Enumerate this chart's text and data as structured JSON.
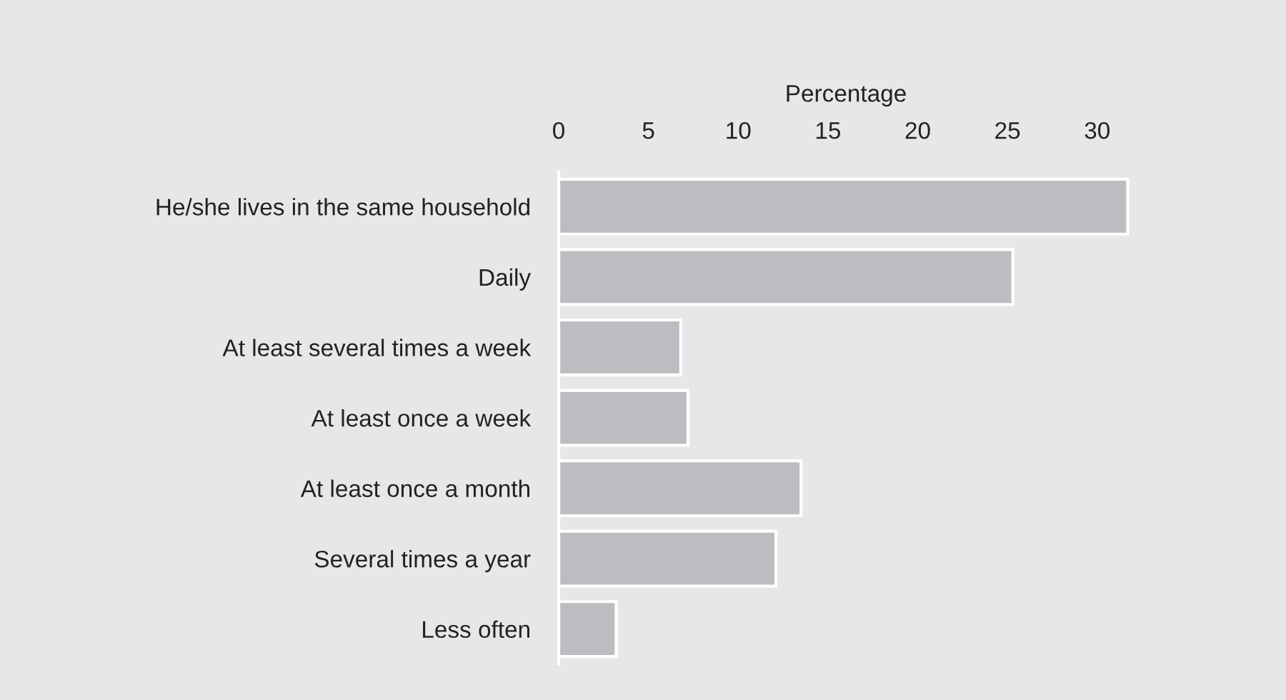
{
  "chart_data": {
    "type": "bar",
    "orientation": "horizontal",
    "xlabel": "Percentage",
    "categories": [
      "He/she lives in the same household",
      "Daily",
      "At least several times a week",
      "At least once a week",
      "At least once a month",
      "Several times a year",
      "Less often"
    ],
    "values": [
      31.7,
      25.3,
      6.8,
      7.2,
      13.5,
      12.1,
      3.2
    ],
    "color": "#bcbdc1",
    "xlim": [
      0,
      32
    ],
    "xticks": [
      0,
      5,
      10,
      15,
      20,
      25,
      30
    ],
    "grid": false,
    "legend": false
  }
}
